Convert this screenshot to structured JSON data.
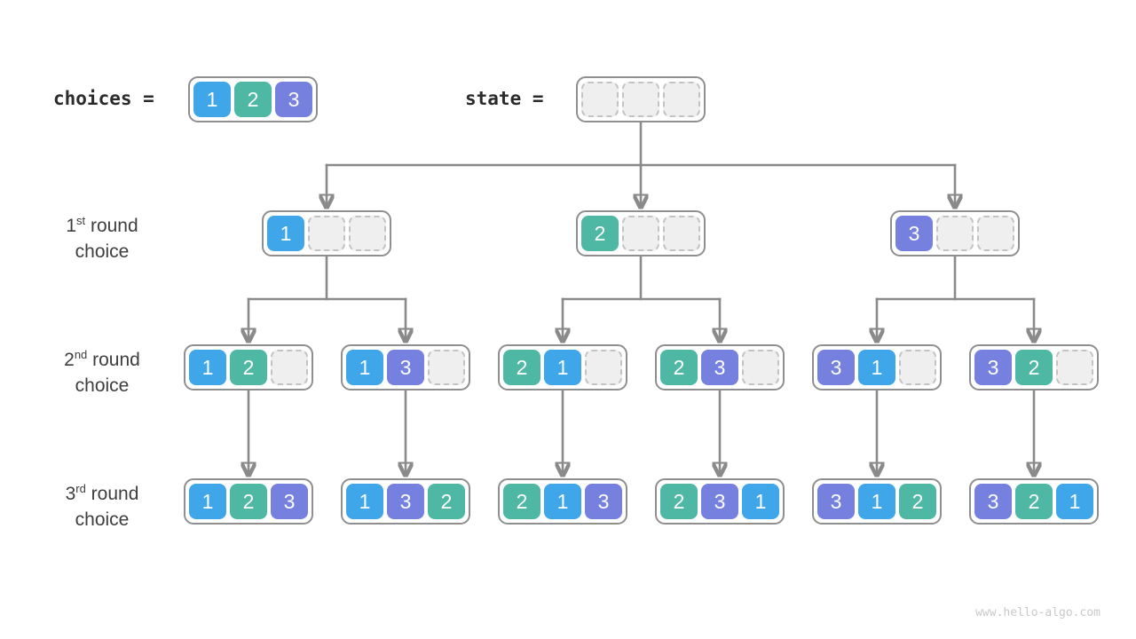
{
  "colors": {
    "1": "#3ea6e9",
    "2": "#4fb8a5",
    "3": "#7681df"
  },
  "header": {
    "choices_label": "choices =",
    "choices_cells": [
      "1",
      "2",
      "3"
    ],
    "state_label": "state =",
    "state_cells": [
      "",
      "",
      ""
    ]
  },
  "row_labels": [
    {
      "num": "1",
      "ordinal": "st",
      "rest": " round",
      "line2": "choice"
    },
    {
      "num": "2",
      "ordinal": "nd",
      "rest": " round",
      "line2": "choice"
    },
    {
      "num": "3",
      "ordinal": "rd",
      "rest": " round",
      "line2": "choice"
    }
  ],
  "tree": {
    "level1": [
      [
        "1",
        "",
        ""
      ],
      [
        "2",
        "",
        ""
      ],
      [
        "3",
        "",
        ""
      ]
    ],
    "level2": [
      [
        "1",
        "2",
        ""
      ],
      [
        "1",
        "3",
        ""
      ],
      [
        "2",
        "1",
        ""
      ],
      [
        "2",
        "3",
        ""
      ],
      [
        "3",
        "1",
        ""
      ],
      [
        "3",
        "2",
        ""
      ]
    ],
    "level3": [
      [
        "1",
        "2",
        "3"
      ],
      [
        "1",
        "3",
        "2"
      ],
      [
        "2",
        "1",
        "3"
      ],
      [
        "2",
        "3",
        "1"
      ],
      [
        "3",
        "1",
        "2"
      ],
      [
        "3",
        "2",
        "1"
      ]
    ]
  },
  "footer": {
    "watermark": "www.hello-algo.com"
  }
}
